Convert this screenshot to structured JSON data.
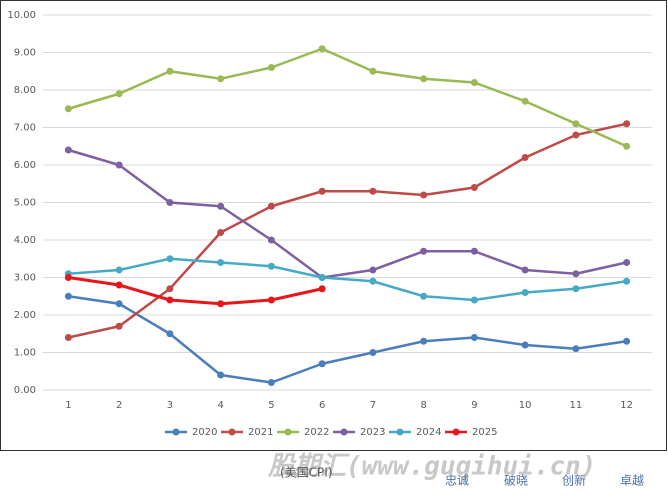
{
  "chart_data": {
    "type": "line",
    "categories": [
      "1",
      "2",
      "3",
      "4",
      "5",
      "6",
      "7",
      "8",
      "9",
      "10",
      "11",
      "12"
    ],
    "series": [
      {
        "name": "2020",
        "color": "#4a7ebb",
        "values": [
          2.5,
          2.3,
          1.5,
          0.4,
          0.2,
          0.7,
          1.0,
          1.3,
          1.4,
          1.2,
          1.1,
          1.3
        ]
      },
      {
        "name": "2021",
        "color": "#be4b48",
        "values": [
          1.4,
          1.7,
          2.7,
          4.2,
          4.9,
          5.3,
          5.3,
          5.2,
          5.4,
          6.2,
          6.8,
          7.1
        ]
      },
      {
        "name": "2022",
        "color": "#98b954",
        "values": [
          7.5,
          7.9,
          8.5,
          8.3,
          8.6,
          9.1,
          8.5,
          8.3,
          8.2,
          7.7,
          7.1,
          6.5
        ]
      },
      {
        "name": "2023",
        "color": "#7d60a0",
        "values": [
          6.4,
          6.0,
          5.0,
          4.9,
          4.0,
          3.0,
          3.2,
          3.7,
          3.7,
          3.2,
          3.1,
          3.4
        ]
      },
      {
        "name": "2024",
        "color": "#46aac5",
        "values": [
          3.1,
          3.2,
          3.5,
          3.4,
          3.3,
          3.0,
          2.9,
          2.5,
          2.4,
          2.6,
          2.7,
          2.9
        ]
      },
      {
        "name": "2025",
        "color": "#e8161b",
        "values": [
          3.0,
          2.8,
          2.4,
          2.3,
          2.4,
          2.7,
          null,
          null,
          null,
          null,
          null,
          null
        ]
      }
    ],
    "ylim": [
      0,
      10
    ],
    "yticks": [
      {
        "value": 0,
        "label": "0.00"
      },
      {
        "value": 1,
        "label": "1.00"
      },
      {
        "value": 2,
        "label": "2.00"
      },
      {
        "value": 3,
        "label": "3.00"
      },
      {
        "value": 4,
        "label": "4.00"
      },
      {
        "value": 5,
        "label": "5.00"
      },
      {
        "value": 6,
        "label": "6.00"
      },
      {
        "value": 7,
        "label": "7.00"
      },
      {
        "value": 8,
        "label": "8.00"
      },
      {
        "value": 9,
        "label": "9.00"
      },
      {
        "value": 10,
        "label": "10.00"
      }
    ],
    "grid": true,
    "legend": "bottom",
    "caption": "(美国CPI)",
    "watermark": "股期汇(www.guqihui.cn)",
    "footer": [
      "忠诚",
      "破晓",
      "创新",
      "卓越"
    ]
  }
}
